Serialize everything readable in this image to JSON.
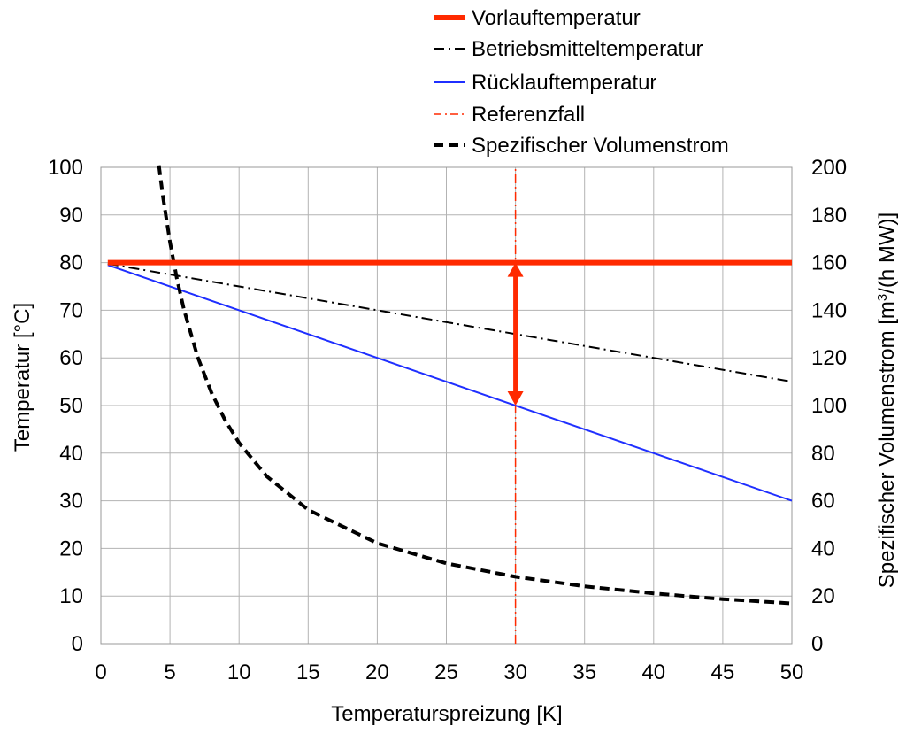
{
  "chart_data": {
    "type": "line",
    "title": "",
    "xlabel": "Temperaturspreizung  [K]",
    "ylabel": "Temperatur  [°C]",
    "y2label_main": "Spezifischer Volumenstrom [m",
    "y2label_sup": "3",
    "y2label_end": "/(h MW)]",
    "xlim": [
      0,
      50
    ],
    "ylim": [
      0,
      100
    ],
    "y2lim": [
      0,
      200
    ],
    "xticks": [
      0,
      5,
      10,
      15,
      20,
      25,
      30,
      35,
      40,
      45,
      50
    ],
    "yticks": [
      0,
      10,
      20,
      30,
      40,
      50,
      60,
      70,
      80,
      90,
      100
    ],
    "y2ticks": [
      0,
      20,
      40,
      60,
      80,
      100,
      120,
      140,
      160,
      180,
      200
    ],
    "grid": true,
    "legend_position": "top",
    "series": [
      {
        "name": "Vorlauftemperatur",
        "axis": "left",
        "color": "#ff2a00",
        "style": "solid-thick",
        "x": [
          0.5,
          50
        ],
        "y": [
          80,
          80
        ]
      },
      {
        "name": "Betriebsmitteltemperatur",
        "axis": "left",
        "color": "#000000",
        "style": "dashdot",
        "x": [
          0.5,
          50
        ],
        "y": [
          79.75,
          55
        ]
      },
      {
        "name": "Rücklauftemperatur",
        "axis": "left",
        "color": "#1f2fff",
        "style": "solid",
        "x": [
          0.5,
          50
        ],
        "y": [
          79.5,
          30
        ]
      },
      {
        "name": "Referenzfall",
        "axis": "left",
        "color": "#ff2a00",
        "style": "dashdot-vertical",
        "x": [
          30,
          30
        ],
        "y": [
          0,
          100
        ]
      },
      {
        "name": "Spezifischer Volumenstrom",
        "axis": "right",
        "color": "#000000",
        "style": "dashed-thick",
        "x": [
          4.2,
          4.5,
          5,
          5.5,
          6,
          7,
          8,
          9,
          10,
          12,
          15,
          20,
          25,
          30,
          35,
          40,
          45,
          50
        ],
        "y": [
          200.8,
          187.4,
          168.7,
          153.3,
          140.6,
          120.5,
          105.4,
          93.7,
          84.3,
          70.3,
          56.2,
          42.2,
          33.7,
          28.1,
          24.1,
          21.1,
          18.7,
          16.9
        ]
      }
    ],
    "annotations": [
      {
        "type": "double-arrow",
        "color": "#ff2a00",
        "x": 30,
        "y_from": 50,
        "y_to": 80
      }
    ]
  }
}
